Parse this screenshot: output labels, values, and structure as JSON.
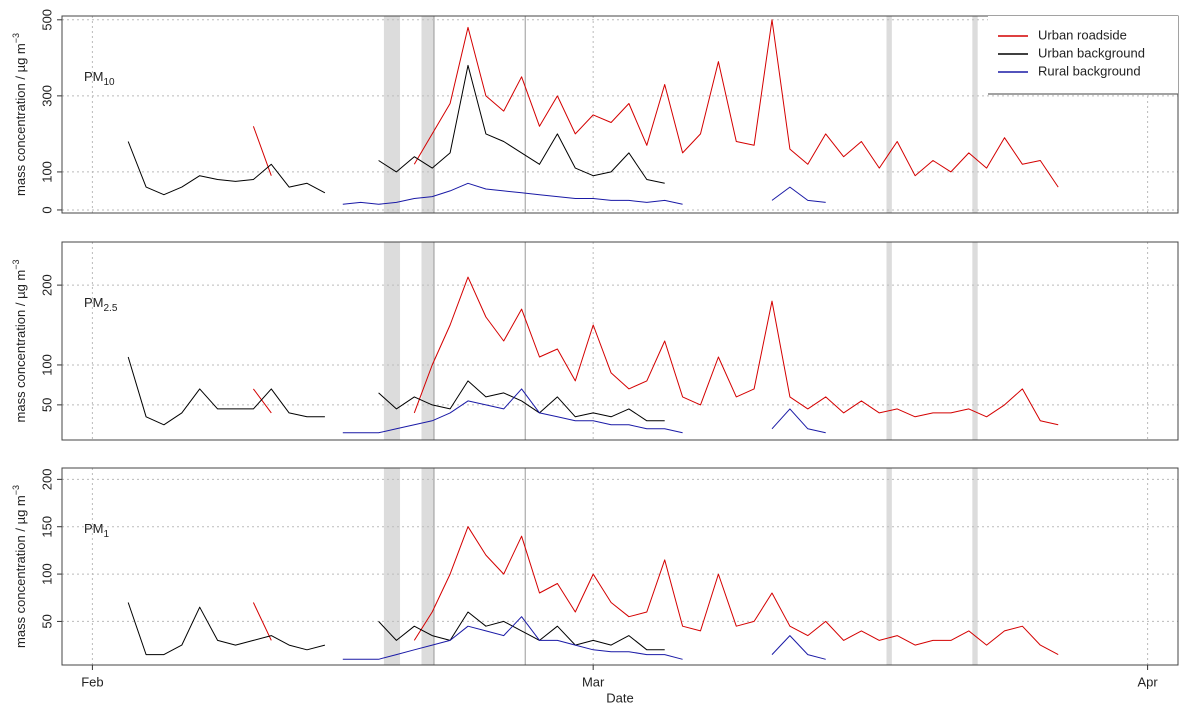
{
  "chart_data": [
    {
      "type": "line",
      "label": "PM",
      "label_sub": "10",
      "ylabel": "mass concentration  /  µg m",
      "ylabel_sup": "−3",
      "xlim": [
        -1.7,
        60.7
      ],
      "ylim": [
        -8,
        510
      ],
      "yticks": [
        0,
        100,
        300,
        500
      ],
      "grid": true,
      "shaded": [
        [
          16.3,
          17.2
        ],
        [
          18.4,
          19.1
        ],
        [
          44.4,
          44.7
        ],
        [
          49.2,
          49.5
        ]
      ],
      "vlines": [
        19.1,
        24.2
      ],
      "legend": "upper right",
      "x": [
        2,
        3,
        4,
        5,
        6,
        7,
        8,
        9,
        10,
        11,
        12,
        13,
        14,
        15,
        16,
        17,
        18,
        19,
        20,
        21,
        22,
        23,
        24,
        25,
        26,
        27,
        28,
        29,
        30,
        31,
        32,
        33,
        34,
        35,
        36,
        37,
        38,
        39,
        40,
        41,
        42,
        43,
        44,
        45,
        46,
        47,
        48,
        49,
        50,
        51,
        52,
        53,
        54
      ],
      "series": [
        {
          "name": "Urban roadside",
          "color": "#d40000",
          "values": [
            null,
            null,
            null,
            null,
            null,
            null,
            null,
            220,
            90,
            null,
            null,
            null,
            null,
            null,
            null,
            null,
            120,
            200,
            280,
            480,
            300,
            260,
            350,
            220,
            300,
            200,
            250,
            230,
            280,
            170,
            330,
            150,
            200,
            390,
            180,
            170,
            500,
            160,
            120,
            200,
            140,
            180,
            110,
            180,
            90,
            130,
            100,
            150,
            110,
            190,
            120,
            130,
            60
          ]
        },
        {
          "name": "Urban background",
          "color": "#000000",
          "values": [
            180,
            60,
            40,
            60,
            90,
            80,
            75,
            80,
            120,
            60,
            70,
            45,
            null,
            null,
            130,
            100,
            140,
            110,
            150,
            380,
            200,
            180,
            150,
            120,
            200,
            110,
            90,
            100,
            150,
            80,
            70,
            null,
            null,
            null,
            null,
            null,
            null,
            null,
            null,
            null,
            null,
            null,
            null,
            null,
            null,
            null,
            null,
            null,
            null,
            null,
            null,
            null,
            null
          ]
        },
        {
          "name": "Rural background",
          "color": "#1a1aa6",
          "values": [
            null,
            null,
            null,
            null,
            null,
            null,
            null,
            null,
            null,
            null,
            null,
            null,
            15,
            20,
            15,
            20,
            30,
            35,
            50,
            70,
            55,
            50,
            45,
            40,
            35,
            30,
            30,
            25,
            25,
            20,
            25,
            15,
            null,
            null,
            null,
            null,
            25,
            60,
            25,
            20,
            null,
            null,
            null,
            null,
            null,
            null,
            null,
            null,
            null,
            null,
            null,
            null,
            null
          ]
        }
      ]
    },
    {
      "type": "line",
      "label": "PM",
      "label_sub": "2.5",
      "ylabel": "mass concentration  /  µg m",
      "ylabel_sup": "−3",
      "xlim": [
        -1.7,
        60.7
      ],
      "ylim": [
        6,
        254
      ],
      "yticks": [
        50,
        100,
        200
      ],
      "grid": true,
      "shaded": [
        [
          16.3,
          17.2
        ],
        [
          18.4,
          19.1
        ],
        [
          44.4,
          44.7
        ],
        [
          49.2,
          49.5
        ]
      ],
      "vlines": [
        19.1,
        24.2
      ],
      "x": [
        2,
        3,
        4,
        5,
        6,
        7,
        8,
        9,
        10,
        11,
        12,
        13,
        14,
        15,
        16,
        17,
        18,
        19,
        20,
        21,
        22,
        23,
        24,
        25,
        26,
        27,
        28,
        29,
        30,
        31,
        32,
        33,
        34,
        35,
        36,
        37,
        38,
        39,
        40,
        41,
        42,
        43,
        44,
        45,
        46,
        47,
        48,
        49,
        50,
        51,
        52,
        53,
        54
      ],
      "series": [
        {
          "color": "#d40000",
          "values": [
            null,
            null,
            null,
            null,
            null,
            null,
            null,
            70,
            40,
            null,
            null,
            null,
            null,
            null,
            null,
            null,
            40,
            100,
            150,
            210,
            160,
            130,
            170,
            110,
            120,
            80,
            150,
            90,
            70,
            80,
            130,
            60,
            50,
            110,
            60,
            70,
            180,
            60,
            45,
            60,
            40,
            55,
            40,
            45,
            35,
            40,
            40,
            45,
            35,
            50,
            70,
            30,
            25
          ]
        },
        {
          "color": "#000000",
          "values": [
            110,
            35,
            25,
            40,
            70,
            45,
            45,
            45,
            70,
            40,
            35,
            35,
            null,
            null,
            65,
            45,
            60,
            50,
            45,
            80,
            60,
            65,
            55,
            40,
            60,
            35,
            40,
            35,
            45,
            30,
            30,
            null,
            null,
            null,
            null,
            null,
            null,
            null,
            null,
            null,
            null,
            null,
            null,
            null,
            null,
            null,
            null,
            null,
            null,
            null,
            null,
            null,
            null
          ]
        },
        {
          "color": "#1a1aa6",
          "values": [
            null,
            null,
            null,
            null,
            null,
            null,
            null,
            null,
            null,
            null,
            null,
            null,
            15,
            15,
            15,
            20,
            25,
            30,
            40,
            55,
            50,
            45,
            70,
            40,
            35,
            30,
            30,
            25,
            25,
            20,
            20,
            15,
            null,
            null,
            null,
            null,
            20,
            45,
            20,
            15,
            null,
            null,
            null,
            null,
            null,
            null,
            null,
            null,
            null,
            null,
            null,
            null,
            null
          ]
        }
      ]
    },
    {
      "type": "line",
      "label": "PM",
      "label_sub": "1",
      "ylabel": "mass concentration  /  µg m",
      "ylabel_sup": "−3",
      "xlabel": "Date",
      "xlim": [
        -1.7,
        60.7
      ],
      "ylim": [
        4,
        212
      ],
      "yticks": [
        50,
        100,
        150,
        200
      ],
      "grid": true,
      "xticks": [
        {
          "value": 0,
          "label": "Feb"
        },
        {
          "value": 28,
          "label": "Mar"
        },
        {
          "value": 59,
          "label": "Apr"
        }
      ],
      "shaded": [
        [
          16.3,
          17.2
        ],
        [
          18.4,
          19.1
        ],
        [
          44.4,
          44.7
        ],
        [
          49.2,
          49.5
        ]
      ],
      "vlines": [
        19.1,
        24.2
      ],
      "x": [
        2,
        3,
        4,
        5,
        6,
        7,
        8,
        9,
        10,
        11,
        12,
        13,
        14,
        15,
        16,
        17,
        18,
        19,
        20,
        21,
        22,
        23,
        24,
        25,
        26,
        27,
        28,
        29,
        30,
        31,
        32,
        33,
        34,
        35,
        36,
        37,
        38,
        39,
        40,
        41,
        42,
        43,
        44,
        45,
        46,
        47,
        48,
        49,
        50,
        51,
        52,
        53,
        54
      ],
      "series": [
        {
          "color": "#d40000",
          "values": [
            null,
            null,
            null,
            null,
            null,
            null,
            null,
            70,
            30,
            null,
            null,
            null,
            null,
            null,
            null,
            null,
            30,
            60,
            100,
            150,
            120,
            100,
            140,
            80,
            90,
            60,
            100,
            70,
            55,
            60,
            115,
            45,
            40,
            100,
            45,
            50,
            80,
            45,
            35,
            50,
            30,
            40,
            30,
            35,
            25,
            30,
            30,
            40,
            25,
            40,
            45,
            25,
            15
          ]
        },
        {
          "color": "#000000",
          "values": [
            70,
            15,
            15,
            25,
            65,
            30,
            25,
            30,
            35,
            25,
            20,
            25,
            null,
            null,
            50,
            30,
            45,
            35,
            30,
            60,
            45,
            50,
            40,
            30,
            45,
            25,
            30,
            25,
            35,
            20,
            20,
            null,
            null,
            null,
            null,
            null,
            null,
            null,
            null,
            null,
            null,
            null,
            null,
            null,
            null,
            null,
            null,
            null,
            null,
            null,
            null,
            null,
            null
          ]
        },
        {
          "color": "#1a1aa6",
          "values": [
            null,
            null,
            null,
            null,
            null,
            null,
            null,
            null,
            null,
            null,
            null,
            null,
            10,
            10,
            10,
            15,
            20,
            25,
            30,
            45,
            40,
            35,
            55,
            30,
            30,
            25,
            20,
            18,
            18,
            15,
            15,
            10,
            null,
            null,
            null,
            null,
            15,
            35,
            15,
            10,
            null,
            null,
            null,
            null,
            null,
            null,
            null,
            null,
            null,
            null,
            null,
            null,
            null
          ]
        }
      ]
    }
  ]
}
